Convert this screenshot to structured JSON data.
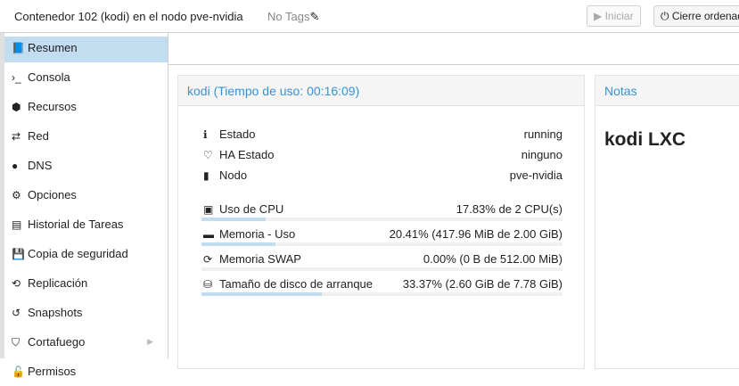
{
  "header": {
    "title": "Contenedor 102 (kodi) en el nodo pve-nvidia",
    "tags": "No Tags",
    "start": "Iniciar",
    "shutdown": "Cierre ordenado"
  },
  "sidebar": {
    "items": [
      {
        "label": "Resumen",
        "icon": "book-icon",
        "sel": true
      },
      {
        "label": "Consola",
        "icon": "terminal-icon"
      },
      {
        "label": "Recursos",
        "icon": "cube-icon"
      },
      {
        "label": "Red",
        "icon": "exchange-icon"
      },
      {
        "label": "DNS",
        "icon": "globe-icon"
      },
      {
        "label": "Opciones",
        "icon": "gear-icon"
      },
      {
        "label": "Historial de Tareas",
        "icon": "list-icon"
      },
      {
        "label": "Copia de seguridad",
        "icon": "floppy-icon"
      },
      {
        "label": "Replicación",
        "icon": "retweet-icon"
      },
      {
        "label": "Snapshots",
        "icon": "history-icon"
      },
      {
        "label": "Cortafuego",
        "icon": "shield-icon"
      },
      {
        "label": "Permisos",
        "icon": "unlock-icon"
      }
    ]
  },
  "status": {
    "title": "kodi (Tiempo de uso: 00:16:09)",
    "info": [
      {
        "label": "Estado",
        "value": "running"
      },
      {
        "label": "HA Estado",
        "value": "ninguno"
      },
      {
        "label": "Nodo",
        "value": "pve-nvidia"
      }
    ],
    "usage": [
      {
        "label": "Uso de CPU",
        "value": "17.83% de 2 CPU(s)",
        "percent": 17.83
      },
      {
        "label": "Memoria - Uso",
        "value": "20.41% (417.96 MiB de 2.00 GiB)",
        "percent": 20.41
      },
      {
        "label": "Memoria SWAP",
        "value": "0.00% (0 B de 512.00 MiB)",
        "percent": 0
      },
      {
        "label": "Tamaño de disco de arranque",
        "value": "33.37% (2.60 GiB de 7.78 GiB)",
        "percent": 33.37
      }
    ]
  },
  "notes": {
    "title": "Notas",
    "content": "kodi LXC"
  },
  "colors": {
    "accent": "#3892d4",
    "selected": "#c2dcf0"
  }
}
